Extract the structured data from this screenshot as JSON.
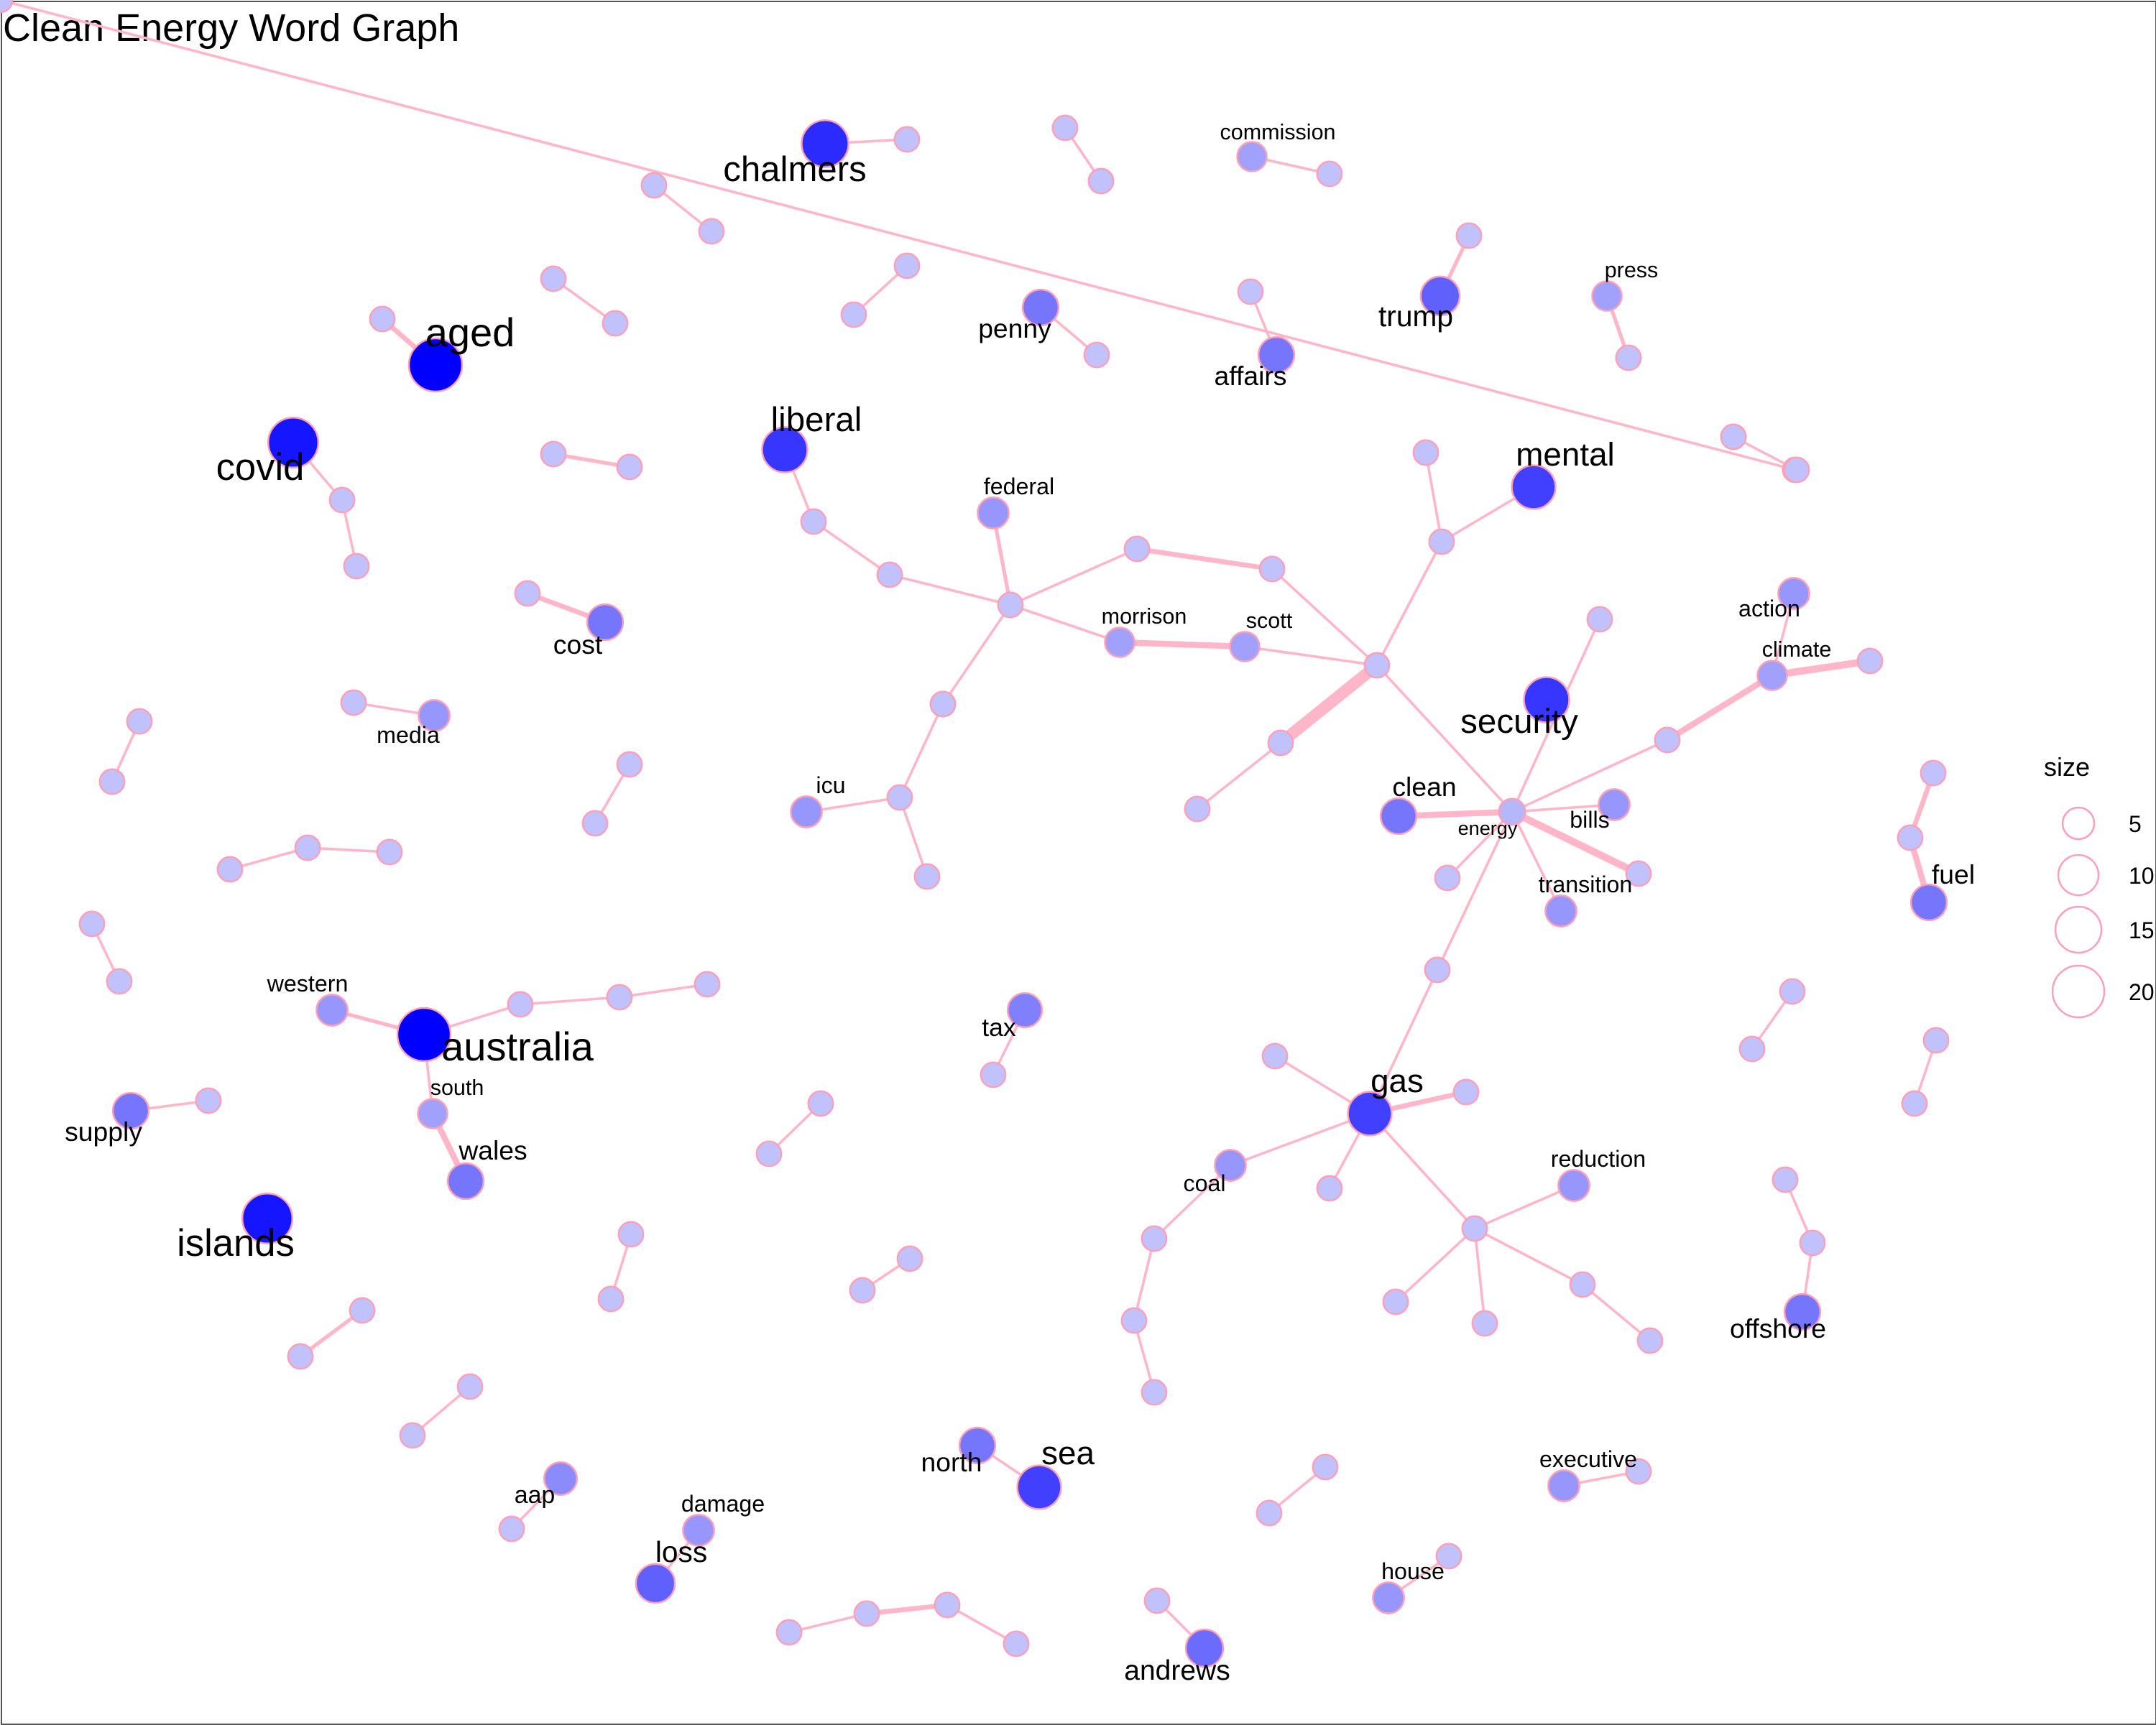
{
  "title": "Clean Energy Word Graph",
  "legend": {
    "title": "size",
    "entries": [
      "5",
      "10",
      "15",
      "20"
    ]
  },
  "colors": {
    "edge": "#ffb6c8",
    "node_stroke": "#ff9fb8",
    "node_fill_scale": [
      "#d6d6fa",
      "#0000ff"
    ]
  },
  "chart_data": {
    "type": "network",
    "nodes": [
      {
        "id": "chalmers",
        "label": "chalmers",
        "weight": 0.8
      },
      {
        "id": "ch2",
        "label": "",
        "weight": 0.1
      },
      {
        "id": "a1",
        "label": "",
        "weight": 0.1
      },
      {
        "id": "a2",
        "label": "",
        "weight": 0.1
      },
      {
        "id": "commission",
        "label": "commission",
        "weight": 0.25
      },
      {
        "id": "cm2",
        "label": "",
        "weight": 0.1
      },
      {
        "id": "b1",
        "label": "",
        "weight": 0.1
      },
      {
        "id": "b2",
        "label": "",
        "weight": 0.1
      },
      {
        "id": "c1",
        "label": "",
        "weight": 0.1
      },
      {
        "id": "c2",
        "label": "",
        "weight": 0.1
      },
      {
        "id": "penny",
        "label": "penny",
        "weight": 0.45
      },
      {
        "id": "pn2",
        "label": "",
        "weight": 0.1
      },
      {
        "id": "af1",
        "label": "",
        "weight": 0.1
      },
      {
        "id": "affairs",
        "label": "affairs",
        "weight": 0.45
      },
      {
        "id": "tr1",
        "label": "",
        "weight": 0.1
      },
      {
        "id": "trump",
        "label": "trump",
        "weight": 0.55
      },
      {
        "id": "press",
        "label": "press",
        "weight": 0.25
      },
      {
        "id": "pr2",
        "label": "",
        "weight": 0.1
      },
      {
        "id": "d1",
        "label": "",
        "weight": 0.1
      },
      {
        "id": "d2",
        "label": "",
        "weight": 0.1
      },
      {
        "id": "ag1",
        "label": "",
        "weight": 0.1
      },
      {
        "id": "aged",
        "label": "aged",
        "weight": 1.0
      },
      {
        "id": "covid",
        "label": "covid",
        "weight": 0.9
      },
      {
        "id": "cv2",
        "label": "",
        "weight": 0.1
      },
      {
        "id": "cv3",
        "label": "",
        "weight": 0.1
      },
      {
        "id": "e1",
        "label": "",
        "weight": 0.1
      },
      {
        "id": "e2",
        "label": "",
        "weight": 0.1
      },
      {
        "id": "liberal",
        "label": "liberal",
        "weight": 0.75
      },
      {
        "id": "f1",
        "label": "",
        "weight": 0.1
      },
      {
        "id": "f2",
        "label": "",
        "weight": 0.1
      },
      {
        "id": "g1",
        "label": "",
        "weight": 0.1
      },
      {
        "id": "g2",
        "label": "",
        "weight": 0.1
      },
      {
        "id": "cs1",
        "label": "",
        "weight": 0.1
      },
      {
        "id": "cost",
        "label": "cost",
        "weight": 0.45
      },
      {
        "id": "federal",
        "label": "federal",
        "weight": 0.3
      },
      {
        "id": "hub1",
        "label": "",
        "weight": 0.1
      },
      {
        "id": "lb2",
        "label": "",
        "weight": 0.1
      },
      {
        "id": "lb3",
        "label": "",
        "weight": 0.1
      },
      {
        "id": "n826",
        "label": "",
        "weight": 0.1
      },
      {
        "id": "n924",
        "label": "",
        "weight": 0.1
      },
      {
        "id": "morrison",
        "label": "morrison",
        "weight": 0.25
      },
      {
        "id": "scott",
        "label": "scott",
        "weight": 0.25
      },
      {
        "id": "hub2",
        "label": "",
        "weight": 0.1
      },
      {
        "id": "n1036",
        "label": "",
        "weight": 0.1
      },
      {
        "id": "n1048",
        "label": "",
        "weight": 0.1
      },
      {
        "id": "mental",
        "label": "mental",
        "weight": 0.7
      },
      {
        "id": "h1",
        "label": "",
        "weight": 0.1
      },
      {
        "id": "h2",
        "label": "",
        "weight": 0.1
      },
      {
        "id": "action",
        "label": "action",
        "weight": 0.3
      },
      {
        "id": "climate",
        "label": "climate",
        "weight": 0.25
      },
      {
        "id": "cl3",
        "label": "",
        "weight": 0.1
      },
      {
        "id": "n1162",
        "label": "",
        "weight": 0.1
      },
      {
        "id": "security",
        "label": "security",
        "weight": 0.75
      },
      {
        "id": "n930",
        "label": "",
        "weight": 0.1
      },
      {
        "id": "n870",
        "label": "",
        "weight": 0.1
      },
      {
        "id": "energy",
        "label": "energy",
        "weight": 0.15
      },
      {
        "id": "clean",
        "label": "clean",
        "weight": 0.45
      },
      {
        "id": "bills",
        "label": "bills",
        "weight": 0.3
      },
      {
        "id": "n1190",
        "label": "",
        "weight": 0.1
      },
      {
        "id": "transition",
        "label": "transition",
        "weight": 0.3
      },
      {
        "id": "n1052",
        "label": "",
        "weight": 0.1
      },
      {
        "id": "n1212",
        "label": "",
        "weight": 0.1
      },
      {
        "id": "n1044",
        "label": "",
        "weight": 0.1
      },
      {
        "id": "ms1",
        "label": "",
        "weight": 0.1
      },
      {
        "id": "media",
        "label": "media",
        "weight": 0.3
      },
      {
        "id": "i1",
        "label": "",
        "weight": 0.1
      },
      {
        "id": "i2",
        "label": "",
        "weight": 0.1
      },
      {
        "id": "n686",
        "label": "",
        "weight": 0.1
      },
      {
        "id": "n654",
        "label": "",
        "weight": 0.1
      },
      {
        "id": "icu",
        "label": "icu",
        "weight": 0.3
      },
      {
        "id": "n674",
        "label": "",
        "weight": 0.1
      },
      {
        "id": "j1",
        "label": "",
        "weight": 0.1
      },
      {
        "id": "j2",
        "label": "",
        "weight": 0.1
      },
      {
        "id": "fu1",
        "label": "",
        "weight": 0.1
      },
      {
        "id": "fu2",
        "label": "",
        "weight": 0.1
      },
      {
        "id": "fuel",
        "label": "fuel",
        "weight": 0.45
      },
      {
        "id": "k1",
        "label": "",
        "weight": 0.1
      },
      {
        "id": "k2",
        "label": "",
        "weight": 0.1
      },
      {
        "id": "k3",
        "label": "",
        "weight": 0.1
      },
      {
        "id": "l1",
        "label": "",
        "weight": 0.1
      },
      {
        "id": "l2",
        "label": "",
        "weight": 0.1
      },
      {
        "id": "western",
        "label": "western",
        "weight": 0.3
      },
      {
        "id": "australia",
        "label": "australia",
        "weight": 1.0
      },
      {
        "id": "au2",
        "label": "",
        "weight": 0.1
      },
      {
        "id": "au3",
        "label": "",
        "weight": 0.1
      },
      {
        "id": "au4",
        "label": "",
        "weight": 0.1
      },
      {
        "id": "south",
        "label": "south",
        "weight": 0.25
      },
      {
        "id": "wales",
        "label": "wales",
        "weight": 0.45
      },
      {
        "id": "supply",
        "label": "supply",
        "weight": 0.45
      },
      {
        "id": "sp2",
        "label": "",
        "weight": 0.1
      },
      {
        "id": "islands",
        "label": "islands",
        "weight": 0.9
      },
      {
        "id": "tax",
        "label": "tax",
        "weight": 0.4
      },
      {
        "id": "tx2",
        "label": "",
        "weight": 0.1
      },
      {
        "id": "m1",
        "label": "",
        "weight": 0.1
      },
      {
        "id": "m2",
        "label": "",
        "weight": 0.1
      },
      {
        "id": "n1304",
        "label": "",
        "weight": 0.1
      },
      {
        "id": "n1274",
        "label": "",
        "weight": 0.1
      },
      {
        "id": "n1408",
        "label": "",
        "weight": 0.1
      },
      {
        "id": "n1392",
        "label": "",
        "weight": 0.1
      },
      {
        "id": "gas",
        "label": "gas",
        "weight": 0.7
      },
      {
        "id": "n928",
        "label": "",
        "weight": 0.1
      },
      {
        "id": "n1066",
        "label": "",
        "weight": 0.1
      },
      {
        "id": "coal",
        "label": "coal",
        "weight": 0.3
      },
      {
        "id": "n966",
        "label": "",
        "weight": 0.1
      },
      {
        "id": "hub3",
        "label": "",
        "weight": 0.1
      },
      {
        "id": "reduction",
        "label": "reduction",
        "weight": 0.3
      },
      {
        "id": "n1014",
        "label": "",
        "weight": 0.1
      },
      {
        "id": "n1080",
        "label": "",
        "weight": 0.1
      },
      {
        "id": "n1150",
        "label": "",
        "weight": 0.1
      },
      {
        "id": "n1200",
        "label": "",
        "weight": 0.1
      },
      {
        "id": "n838",
        "label": "",
        "weight": 0.1
      },
      {
        "id": "n824",
        "label": "",
        "weight": 0.1
      },
      {
        "id": "n840",
        "label": "",
        "weight": 0.1
      },
      {
        "id": "o1",
        "label": "",
        "weight": 0.1
      },
      {
        "id": "o2",
        "label": "",
        "weight": 0.1
      },
      {
        "id": "offshore",
        "label": "offshore",
        "weight": 0.45
      },
      {
        "id": "q1",
        "label": "",
        "weight": 0.1
      },
      {
        "id": "q2",
        "label": "",
        "weight": 0.1
      },
      {
        "id": "r1",
        "label": "",
        "weight": 0.1
      },
      {
        "id": "r2",
        "label": "",
        "weight": 0.1
      },
      {
        "id": "s1",
        "label": "",
        "weight": 0.1
      },
      {
        "id": "s2",
        "label": "",
        "weight": 0.1
      },
      {
        "id": "t1",
        "label": "",
        "weight": 0.1
      },
      {
        "id": "t2",
        "label": "",
        "weight": 0.1
      },
      {
        "id": "aap",
        "label": "aap",
        "weight": 0.35
      },
      {
        "id": "ap2",
        "label": "",
        "weight": 0.1
      },
      {
        "id": "damage",
        "label": "damage",
        "weight": 0.3
      },
      {
        "id": "loss",
        "label": "loss",
        "weight": 0.55
      },
      {
        "id": "north",
        "label": "north",
        "weight": 0.45
      },
      {
        "id": "sea",
        "label": "sea",
        "weight": 0.7
      },
      {
        "id": "u1",
        "label": "",
        "weight": 0.1
      },
      {
        "id": "u2",
        "label": "",
        "weight": 0.1
      },
      {
        "id": "executive",
        "label": "executive",
        "weight": 0.3
      },
      {
        "id": "ex2",
        "label": "",
        "weight": 0.1
      },
      {
        "id": "house",
        "label": "house",
        "weight": 0.3
      },
      {
        "id": "hs2",
        "label": "",
        "weight": 0.1
      },
      {
        "id": "v1",
        "label": "",
        "weight": 0.1
      },
      {
        "id": "v2",
        "label": "",
        "weight": 0.1
      },
      {
        "id": "v3",
        "label": "",
        "weight": 0.1
      },
      {
        "id": "v4",
        "label": "",
        "weight": 0.1
      },
      {
        "id": "an1",
        "label": "",
        "weight": 0.1
      },
      {
        "id": "andrews",
        "label": "andrews",
        "weight": 0.5
      }
    ],
    "edges": [
      [
        "chalmers",
        "ch2",
        1
      ],
      [
        "a1",
        "a2",
        1
      ],
      [
        "commission",
        "cm2",
        1
      ],
      [
        "b1",
        "b2",
        1
      ],
      [
        "c1",
        "c2",
        1
      ],
      [
        "penny",
        "pn2",
        1
      ],
      [
        "af1",
        "affairs",
        1
      ],
      [
        "tr1",
        "trump",
        2
      ],
      [
        "press",
        "pr2",
        2
      ],
      [
        "d1",
        "d2",
        1
      ],
      [
        "ag1",
        "aged",
        3
      ],
      [
        "covid",
        "cv2",
        1
      ],
      [
        "cv2",
        "cv3",
        1
      ],
      [
        "e1",
        "e2",
        2
      ],
      [
        "liberal",
        "f1",
        1
      ],
      [
        "f1",
        "lb2",
        1
      ],
      [
        "g1",
        "g2",
        1
      ],
      [
        "cs1",
        "cost",
        3
      ],
      [
        "lb2",
        "hub1",
        1
      ],
      [
        "federal",
        "hub1",
        2
      ],
      [
        "hub1",
        "n826",
        1
      ],
      [
        "n826",
        "n924",
        3
      ],
      [
        "hub1",
        "morrison",
        1
      ],
      [
        "morrison",
        "scott",
        4
      ],
      [
        "scott",
        "hub2",
        1
      ],
      [
        "n924",
        "hub2",
        1
      ],
      [
        "hub2",
        "n1048",
        1
      ],
      [
        "n1048",
        "n1036",
        1
      ],
      [
        "n1048",
        "mental",
        1
      ],
      [
        "h1",
        "h2",
        1
      ],
      [
        "action",
        "climate",
        1
      ],
      [
        "climate",
        "cl3",
        5
      ],
      [
        "n1212",
        "climate",
        4
      ],
      [
        "hub2",
        "n930",
        9
      ],
      [
        "n930",
        "n870",
        1
      ],
      [
        "hub2",
        "energy",
        1
      ],
      [
        "energy",
        "n1162",
        1
      ],
      [
        "energy",
        "clean",
        4
      ],
      [
        "energy",
        "bills",
        1
      ],
      [
        "energy",
        "n1190",
        5
      ],
      [
        "energy",
        "transition",
        1
      ],
      [
        "energy",
        "n1052",
        1
      ],
      [
        "energy",
        "n1212",
        1
      ],
      [
        "energy",
        "n1044",
        1
      ],
      [
        "ms1",
        "media",
        1
      ],
      [
        "i1",
        "i2",
        1
      ],
      [
        "hub1",
        "lb3",
        1
      ],
      [
        "lb3",
        "n654",
        1
      ],
      [
        "n654",
        "icu",
        1
      ],
      [
        "n654",
        "n674",
        1
      ],
      [
        "j1",
        "j2",
        1
      ],
      [
        "fu1",
        "fu2",
        3
      ],
      [
        "fu2",
        "fuel",
        4
      ],
      [
        "k1",
        "k2",
        1
      ],
      [
        "k2",
        "k3",
        1
      ],
      [
        "l1",
        "l2",
        1
      ],
      [
        "western",
        "australia",
        2
      ],
      [
        "australia",
        "au2",
        1
      ],
      [
        "au2",
        "au3",
        1
      ],
      [
        "au3",
        "au4",
        1
      ],
      [
        "australia",
        "south",
        1
      ],
      [
        "south",
        "wales",
        4
      ],
      [
        "supply",
        "sp2",
        1
      ],
      [
        "tax",
        "tx2",
        1
      ],
      [
        "m1",
        "m2",
        1
      ],
      [
        "n1304",
        "n1274",
        1
      ],
      [
        "n1408",
        "n1392",
        1
      ],
      [
        "n1044",
        "gas",
        1
      ],
      [
        "gas",
        "n928",
        1
      ],
      [
        "gas",
        "n1066",
        3
      ],
      [
        "gas",
        "coal",
        1
      ],
      [
        "gas",
        "n966",
        1
      ],
      [
        "gas",
        "hub3",
        1
      ],
      [
        "hub3",
        "reduction",
        1
      ],
      [
        "hub3",
        "n1014",
        1
      ],
      [
        "hub3",
        "n1080",
        1
      ],
      [
        "hub3",
        "n1150",
        1
      ],
      [
        "n1150",
        "n1200",
        1
      ],
      [
        "coal",
        "n838",
        1
      ],
      [
        "n838",
        "n824",
        1
      ],
      [
        "n824",
        "n840",
        1
      ],
      [
        "o1",
        "o2",
        1
      ],
      [
        "o2",
        "offshore",
        1
      ],
      [
        "q1",
        "q2",
        1
      ],
      [
        "r1",
        "r2",
        1
      ],
      [
        "s1",
        "s2",
        2
      ],
      [
        "t1",
        "t2",
        1
      ],
      [
        "aap",
        "ap2",
        1
      ],
      [
        "damage",
        "loss",
        1
      ],
      [
        "north",
        "sea",
        1
      ],
      [
        "u1",
        "u2",
        1
      ],
      [
        "executive",
        "ex2",
        1
      ],
      [
        "house",
        "hs2",
        1
      ],
      [
        "v1",
        "v2",
        1
      ],
      [
        "v2",
        "v3",
        3
      ],
      [
        "v3",
        "v4",
        1
      ],
      [
        "an1",
        "andrews",
        1
      ]
    ]
  }
}
